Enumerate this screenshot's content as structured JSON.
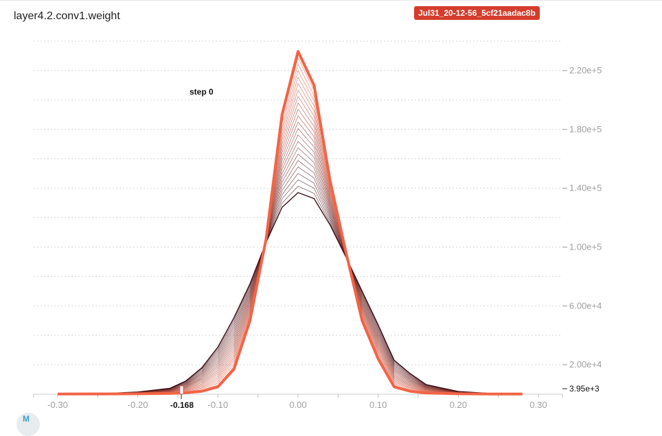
{
  "header": {
    "title": "layer4.2.conv1.weight",
    "run_label": "Jul31_20-12-56_5cf21aadac8b"
  },
  "hover": {
    "step_label": "step 0",
    "x_value": "-0.168",
    "y_value": "3.95e+3"
  },
  "colors": {
    "run_badge": "#d43c2c",
    "oldest_step": "#3a0a12",
    "newest_step": "#f26446",
    "grid": "#d6d6d6",
    "axis_text": "#9e9e9e"
  },
  "chart_data": {
    "type": "area",
    "chart_kind": "histogram-overlay",
    "x_ticks": [
      "-0.30",
      "-0.20",
      "-0.10",
      "0.00",
      "0.10",
      "0.20",
      "0.30"
    ],
    "y_ticks": [
      "2.00e+4",
      "6.00e+4",
      "1.00e+5",
      "1.40e+5",
      "1.80e+5",
      "2.20e+5"
    ],
    "xlim": [
      -0.33,
      0.33
    ],
    "ylim": [
      0,
      240000
    ],
    "grid": true,
    "series": [
      {
        "step": "first",
        "x": [
          -0.3,
          -0.24,
          -0.2,
          -0.16,
          -0.14,
          -0.12,
          -0.1,
          -0.08,
          -0.06,
          -0.04,
          -0.02,
          0.0,
          0.02,
          0.04,
          0.06,
          0.08,
          0.1,
          0.12,
          0.14,
          0.16,
          0.2,
          0.24,
          0.28
        ],
        "values": [
          300,
          500,
          1500,
          3950,
          9000,
          18000,
          32000,
          52000,
          75000,
          103000,
          127000,
          137000,
          133000,
          115000,
          93000,
          70000,
          47000,
          23000,
          14000,
          6500,
          1800,
          500,
          200
        ]
      },
      {
        "step": "last",
        "x": [
          -0.3,
          -0.24,
          -0.2,
          -0.16,
          -0.14,
          -0.12,
          -0.1,
          -0.08,
          -0.06,
          -0.04,
          -0.02,
          0.0,
          0.02,
          0.04,
          0.06,
          0.08,
          0.1,
          0.12,
          0.14,
          0.16,
          0.2,
          0.24,
          0.28
        ],
        "values": [
          100,
          200,
          300,
          500,
          1000,
          2000,
          5000,
          17000,
          50000,
          105000,
          190000,
          233000,
          210000,
          145000,
          96000,
          50000,
          24000,
          5000,
          2000,
          800,
          300,
          150,
          100
        ]
      }
    ],
    "interpolated_steps": 22
  }
}
